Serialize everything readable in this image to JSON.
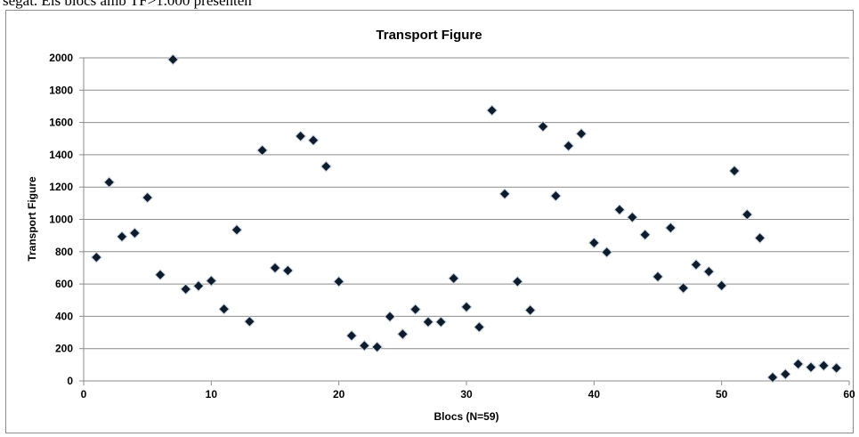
{
  "document": {
    "caption_fragment": "segat. Els blocs amb TF>1.000 presenten"
  },
  "chart_data": {
    "type": "scatter",
    "title": "Transport Figure",
    "xlabel": "Blocs (N=59)",
    "ylabel": "Transport Figure",
    "xlim": [
      0,
      60
    ],
    "ylim": [
      0,
      2000
    ],
    "x_ticks": [
      0,
      10,
      20,
      30,
      40,
      50,
      60
    ],
    "y_ticks": [
      0,
      200,
      400,
      600,
      800,
      1000,
      1200,
      1400,
      1600,
      1800,
      2000
    ],
    "grid": "horizontal",
    "legend": "none",
    "marker": "diamond",
    "marker_color": "#0d1b2a",
    "points": [
      {
        "x": 1,
        "y": 765
      },
      {
        "x": 2,
        "y": 1230
      },
      {
        "x": 3,
        "y": 893
      },
      {
        "x": 4,
        "y": 915
      },
      {
        "x": 5,
        "y": 1135
      },
      {
        "x": 6,
        "y": 657
      },
      {
        "x": 7,
        "y": 1990
      },
      {
        "x": 8,
        "y": 568
      },
      {
        "x": 9,
        "y": 588
      },
      {
        "x": 10,
        "y": 620
      },
      {
        "x": 11,
        "y": 445
      },
      {
        "x": 12,
        "y": 935
      },
      {
        "x": 13,
        "y": 368
      },
      {
        "x": 14,
        "y": 1428
      },
      {
        "x": 15,
        "y": 700
      },
      {
        "x": 16,
        "y": 683
      },
      {
        "x": 17,
        "y": 1515
      },
      {
        "x": 18,
        "y": 1490
      },
      {
        "x": 19,
        "y": 1328
      },
      {
        "x": 20,
        "y": 615
      },
      {
        "x": 21,
        "y": 280
      },
      {
        "x": 22,
        "y": 218
      },
      {
        "x": 23,
        "y": 210
      },
      {
        "x": 24,
        "y": 398
      },
      {
        "x": 25,
        "y": 290
      },
      {
        "x": 26,
        "y": 443
      },
      {
        "x": 27,
        "y": 365
      },
      {
        "x": 28,
        "y": 365
      },
      {
        "x": 29,
        "y": 635
      },
      {
        "x": 30,
        "y": 458
      },
      {
        "x": 31,
        "y": 333
      },
      {
        "x": 32,
        "y": 1675
      },
      {
        "x": 33,
        "y": 1158
      },
      {
        "x": 34,
        "y": 615
      },
      {
        "x": 35,
        "y": 438
      },
      {
        "x": 36,
        "y": 1575
      },
      {
        "x": 37,
        "y": 1145
      },
      {
        "x": 38,
        "y": 1455
      },
      {
        "x": 39,
        "y": 1530
      },
      {
        "x": 40,
        "y": 855
      },
      {
        "x": 41,
        "y": 797
      },
      {
        "x": 42,
        "y": 1060
      },
      {
        "x": 43,
        "y": 1013
      },
      {
        "x": 44,
        "y": 905
      },
      {
        "x": 45,
        "y": 645
      },
      {
        "x": 46,
        "y": 948
      },
      {
        "x": 47,
        "y": 575
      },
      {
        "x": 48,
        "y": 720
      },
      {
        "x": 49,
        "y": 677
      },
      {
        "x": 50,
        "y": 590
      },
      {
        "x": 51,
        "y": 1300
      },
      {
        "x": 52,
        "y": 1030
      },
      {
        "x": 53,
        "y": 885
      },
      {
        "x": 54,
        "y": 22
      },
      {
        "x": 55,
        "y": 42
      },
      {
        "x": 56,
        "y": 105
      },
      {
        "x": 57,
        "y": 85
      },
      {
        "x": 58,
        "y": 95
      },
      {
        "x": 59,
        "y": 80
      }
    ]
  }
}
